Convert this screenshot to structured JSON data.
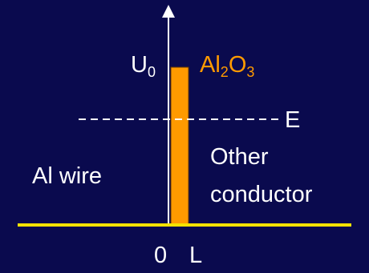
{
  "diagram": {
    "colors": {
      "background": "#0a0a4e",
      "barrier": "#ff9a00",
      "baseline": "#f5e200",
      "text": "#ffffff"
    },
    "axis_label": {
      "base": "U",
      "sub": "0"
    },
    "barrier_label": {
      "part1": "Al",
      "sub1": "2",
      "part2": "O",
      "sub2": "3"
    },
    "energy_label": "E",
    "left_region": "Al wire",
    "right_region_line1": "Other",
    "right_region_line2": "conductor",
    "x_labels": {
      "origin": "0",
      "width": "L"
    }
  }
}
